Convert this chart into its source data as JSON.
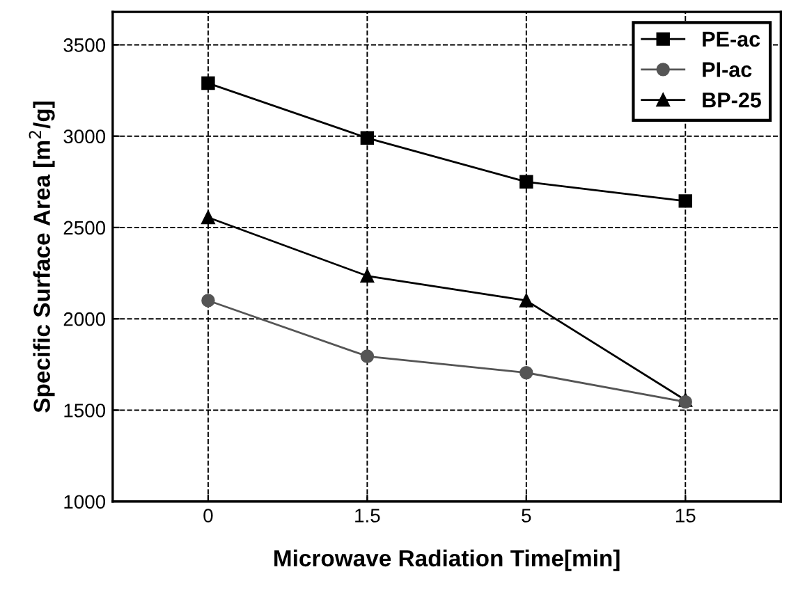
{
  "chart_data": {
    "type": "line",
    "xlabel": "Microwave Radiation Time[min]",
    "ylabel": "Specific Surface Area [m$^{2}$/g]",
    "categories": [
      "0",
      "1.5",
      "5",
      "15"
    ],
    "series": [
      {
        "name": "PE-ac",
        "color": "#000000",
        "marker": "square",
        "values": [
          3290,
          2990,
          2750,
          2645
        ]
      },
      {
        "name": "PI-ac",
        "color": "#555555",
        "marker": "circle",
        "values": [
          2100,
          1795,
          1705,
          1545
        ]
      },
      {
        "name": "BP-25",
        "color": "#000000",
        "marker": "triangle",
        "values": [
          2555,
          2235,
          2100,
          1555
        ]
      }
    ],
    "ylim": [
      1000,
      3680
    ],
    "yticks": [
      1000,
      1500,
      2000,
      2500,
      3000,
      3500
    ],
    "grid": true,
    "legend": "top right",
    "line_style": "solid"
  }
}
